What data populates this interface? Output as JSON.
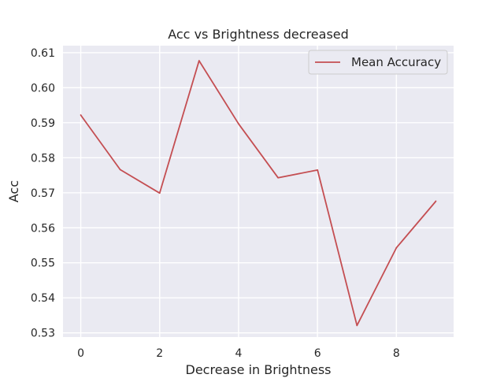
{
  "chart_data": {
    "type": "line",
    "title": "Acc vs Brightness decreased",
    "xlabel": "Decrease in Brightness",
    "ylabel": "Acc",
    "xlim": [
      -0.45,
      9.45
    ],
    "ylim": [
      0.5288,
      0.612
    ],
    "xticks": [
      0,
      2,
      4,
      6,
      8
    ],
    "yticks": [
      0.53,
      0.54,
      0.55,
      0.56,
      0.57,
      0.58,
      0.59,
      0.6,
      0.61
    ],
    "grid": true,
    "legend_position": "top-right",
    "series": [
      {
        "name": "Mean Accuracy",
        "color": "#c44e52",
        "x": [
          0,
          1,
          2,
          3,
          4,
          5,
          6,
          7,
          8,
          9
        ],
        "y": [
          0.5922,
          0.5766,
          0.5699,
          0.6077,
          0.5897,
          0.5743,
          0.5765,
          0.5321,
          0.5543,
          0.5676
        ]
      }
    ]
  },
  "style": {
    "plot_background": "#eaeaf2",
    "grid_color": "#ffffff",
    "text_color": "#262626"
  }
}
